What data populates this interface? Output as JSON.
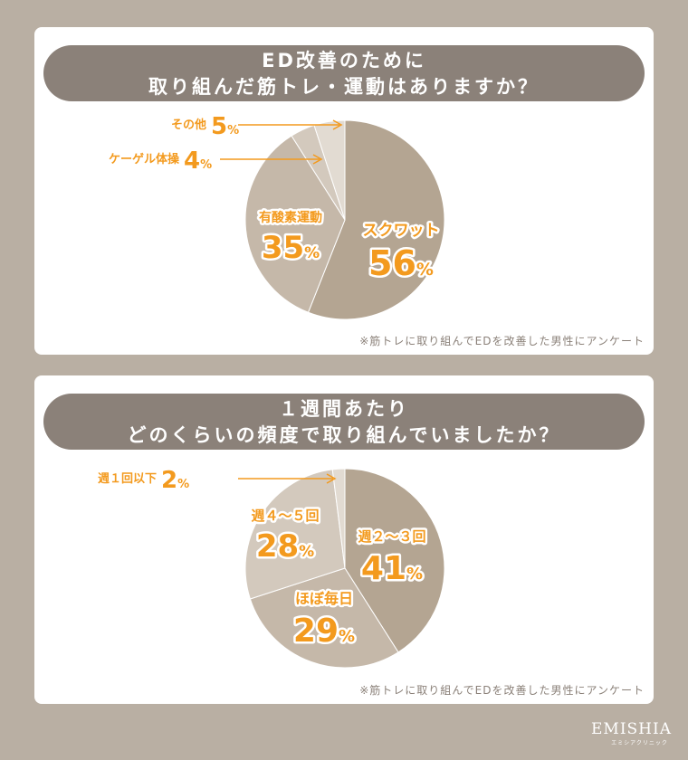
{
  "colors": {
    "background": "#b9afa3",
    "banner": "#8b8179",
    "accent": "#f39a1e",
    "slices": [
      "#b4a592",
      "#c5b8a9",
      "#d3c9bd",
      "#e2dbd2"
    ]
  },
  "chart_data": [
    {
      "type": "pie",
      "title_line1": "ED改善のために",
      "title_line2": "取り組んだ筋トレ・運動はありますか？",
      "note": "※筋トレに取り組んでEDを改善した男性にアンケート",
      "slices": [
        {
          "label": "スクワット",
          "value": 56,
          "display": "56"
        },
        {
          "label": "有酸素運動",
          "value": 35,
          "display": "35"
        },
        {
          "label": "ケーゲル体操",
          "value": 4,
          "display": "4"
        },
        {
          "label": "その他",
          "value": 5,
          "display": "5"
        }
      ]
    },
    {
      "type": "pie",
      "title_line1": "１週間あたり",
      "title_line2": "どのくらいの頻度で取り組んでいましたか？",
      "note": "※筋トレに取り組んでEDを改善した男性にアンケート",
      "slices": [
        {
          "label": "週２〜３回",
          "value": 41,
          "display": "41"
        },
        {
          "label": "ほぼ毎日",
          "value": 29,
          "display": "29"
        },
        {
          "label": "週４〜５回",
          "value": 28,
          "display": "28"
        },
        {
          "label": "週１回以下",
          "value": 2,
          "display": "2"
        }
      ]
    }
  ],
  "percent_sign": "%",
  "logo": {
    "name": "EMISHIA",
    "sub": "エミシアクリニック"
  }
}
